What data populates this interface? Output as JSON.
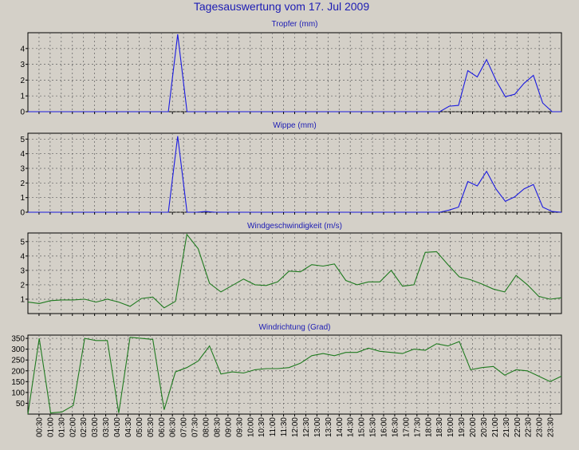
{
  "title": "Tagesauswertung vom 17. Jul 2009",
  "colors": {
    "background": "#d4d0c8",
    "title": "#1c1cb4",
    "subtitle": "#1c1cb4",
    "grid": "#606060",
    "blue_series": "#1a1ae0",
    "green_series": "#1f7a1f"
  },
  "time_labels": [
    "00:30",
    "01:00",
    "01:30",
    "02:00",
    "02:30",
    "03:00",
    "03:30",
    "04:00",
    "04:30",
    "05:00",
    "05:30",
    "06:00",
    "06:30",
    "07:00",
    "07:30",
    "08:00",
    "08:30",
    "09:00",
    "09:30",
    "10:00",
    "10:30",
    "11:00",
    "11:30",
    "12:00",
    "12:30",
    "13:00",
    "13:30",
    "14:00",
    "14:30",
    "15:00",
    "15:30",
    "16:00",
    "16:30",
    "17:00",
    "17:30",
    "18:00",
    "18:30",
    "19:00",
    "19:30",
    "20:00",
    "20:30",
    "21:00",
    "21:30",
    "22:00",
    "22:30",
    "23:00",
    "23:30"
  ],
  "chart_data": [
    {
      "type": "line",
      "title": "Tropfer (mm)",
      "color": "blue_series",
      "ylim": [
        0,
        5
      ],
      "yticks": [
        0,
        1,
        2,
        3,
        4
      ],
      "values": [
        0,
        0,
        0,
        0,
        0,
        0,
        0,
        0,
        0,
        0,
        0,
        0,
        0,
        0,
        0,
        0,
        4.9,
        0,
        0,
        0,
        0,
        0,
        0,
        0,
        0,
        0,
        0,
        0,
        0,
        0,
        0,
        0,
        0,
        0,
        0,
        0,
        0,
        0,
        0,
        0,
        0,
        0,
        0,
        0,
        0,
        0.35,
        0.4,
        2.6,
        2.2,
        3.3,
        2.0,
        0.95,
        1.1,
        1.8,
        2.3,
        0.55,
        0,
        0
      ]
    },
    {
      "type": "line",
      "title": "Wippe (mm)",
      "color": "blue_series",
      "ylim": [
        0,
        5.4
      ],
      "yticks": [
        0,
        1,
        2,
        3,
        4,
        5
      ],
      "values": [
        0,
        0,
        0,
        0,
        0,
        0,
        0,
        0,
        0,
        0,
        0,
        0,
        0,
        0,
        0,
        0,
        5.2,
        0,
        0,
        0.05,
        0,
        0,
        0,
        0,
        0,
        0,
        0,
        0,
        0,
        0,
        0,
        0,
        0,
        0,
        0,
        0,
        0,
        0,
        0,
        0,
        0,
        0,
        0,
        0,
        0,
        0.15,
        0.35,
        2.1,
        1.8,
        2.8,
        1.6,
        0.75,
        1.05,
        1.6,
        1.9,
        0.35,
        0.05,
        0
      ]
    },
    {
      "type": "line",
      "title": "Windgeschwindigkeit (m/s)",
      "color": "green_series",
      "ylim": [
        0,
        5.6
      ],
      "yticks": [
        1,
        2,
        3,
        4,
        5
      ],
      "values": [
        0.8,
        0.7,
        0.9,
        0.95,
        0.95,
        1.0,
        0.8,
        1.0,
        0.8,
        0.5,
        1.05,
        1.15,
        0.4,
        0.85,
        5.5,
        4.5,
        2.1,
        1.5,
        1.95,
        2.4,
        2.0,
        1.95,
        2.2,
        2.95,
        2.9,
        3.4,
        3.3,
        3.45,
        2.3,
        2.0,
        2.2,
        2.2,
        3.0,
        1.9,
        2.0,
        4.25,
        4.3,
        3.4,
        2.55,
        2.35,
        2.05,
        1.7,
        1.5,
        2.65,
        2.0,
        1.2,
        1.0,
        1.1
      ]
    },
    {
      "type": "line",
      "title": "Windrichtung (Grad)",
      "color": "green_series",
      "ylim": [
        0,
        365
      ],
      "yticks": [
        50,
        100,
        150,
        200,
        250,
        300,
        350
      ],
      "values": [
        0,
        350,
        5,
        10,
        40,
        350,
        340,
        340,
        5,
        355,
        350,
        345,
        20,
        195,
        215,
        245,
        315,
        185,
        195,
        190,
        205,
        210,
        210,
        215,
        235,
        270,
        280,
        270,
        285,
        285,
        305,
        290,
        285,
        280,
        300,
        295,
        325,
        315,
        335,
        205,
        215,
        220,
        180,
        205,
        200,
        175,
        150,
        175
      ]
    }
  ]
}
